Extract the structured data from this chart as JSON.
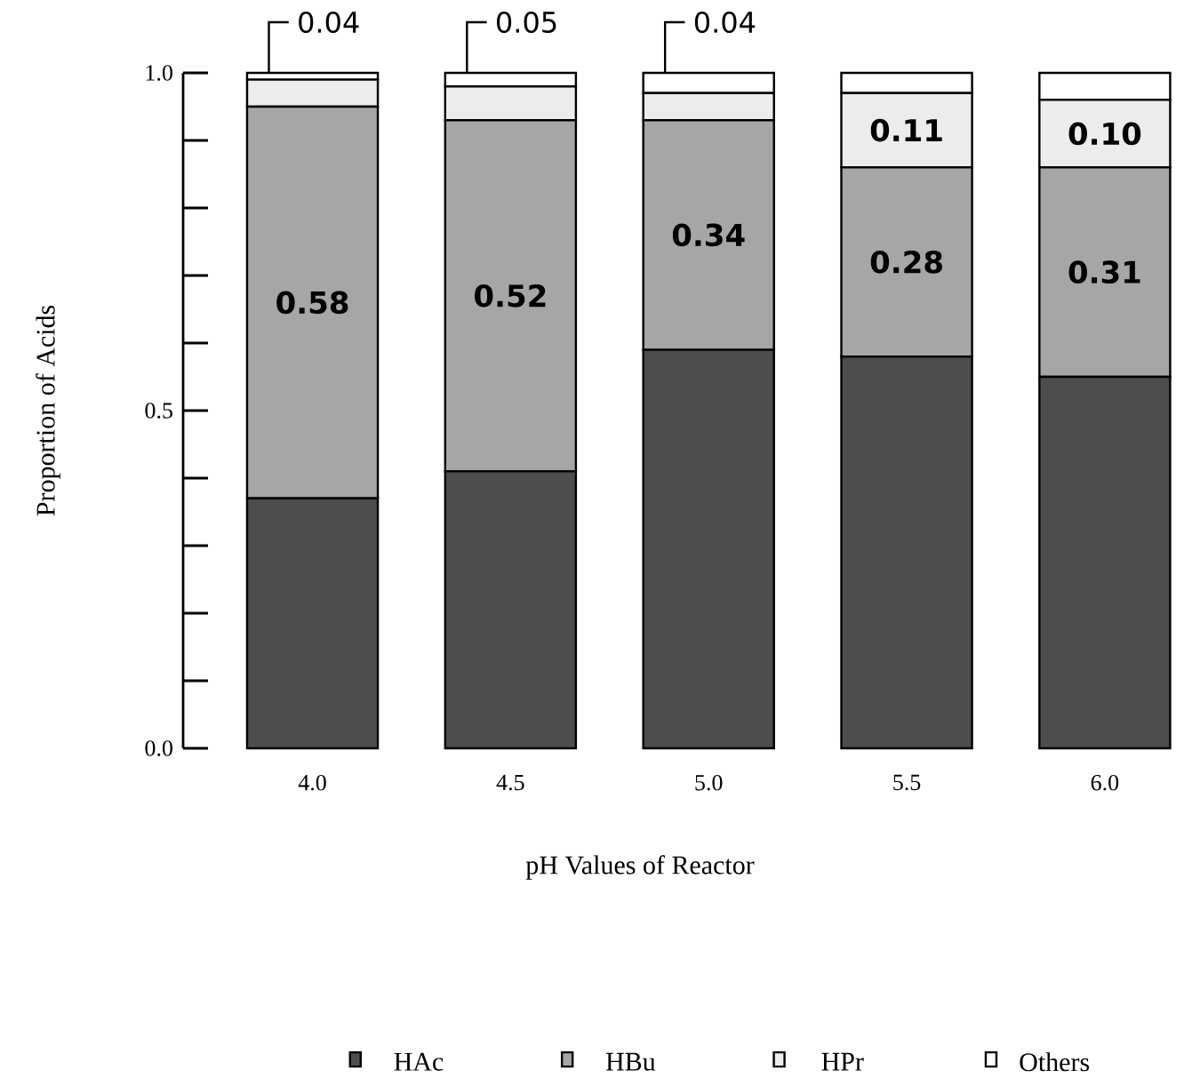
{
  "chart_data": {
    "type": "bar",
    "stacked": true,
    "xlabel": "pH Values of Reactor",
    "ylabel": "Proportion of Acids",
    "categories": [
      "4.0",
      "4.5",
      "5.0",
      "5.5",
      "6.0"
    ],
    "ylim": [
      0,
      1.0
    ],
    "yticks": [
      {
        "value": 0,
        "label": "0.0"
      },
      {
        "value": 0.1,
        "label": null
      },
      {
        "value": 0.2,
        "label": null
      },
      {
        "value": 0.3,
        "label": null
      },
      {
        "value": 0.4,
        "label": null
      },
      {
        "value": 0.5,
        "label": "0.5"
      },
      {
        "value": 0.6,
        "label": null
      },
      {
        "value": 0.7,
        "label": null
      },
      {
        "value": 0.8,
        "label": null
      },
      {
        "value": 0.9,
        "label": null
      },
      {
        "value": 1.0,
        "label": "1.0"
      }
    ],
    "series": [
      {
        "name": "HAc",
        "color": "#4d4d4d",
        "values": [
          0.37,
          0.41,
          0.59,
          0.58,
          0.55
        ]
      },
      {
        "name": "HBu",
        "color": "#a6a6a6",
        "values": [
          0.58,
          0.52,
          0.34,
          0.28,
          0.31
        ],
        "value_labels": [
          "0.58",
          "0.52",
          "0.34",
          "0.28",
          "0.31"
        ]
      },
      {
        "name": "HPr",
        "color": "#ececec",
        "values": [
          0.04,
          0.05,
          0.04,
          0.11,
          0.1
        ],
        "value_labels": [
          "0.04",
          "0.05",
          "0.04",
          "0.11",
          "0.10"
        ]
      },
      {
        "name": "Others",
        "color": "#ffffff",
        "values": [
          0.01,
          0.02,
          0.03,
          0.03,
          0.04
        ]
      }
    ],
    "legend": "bottom"
  }
}
